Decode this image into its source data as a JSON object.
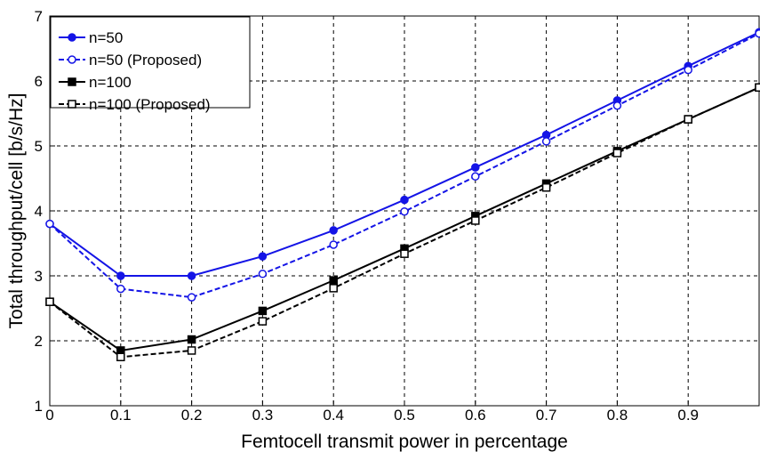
{
  "chart_data": {
    "type": "line",
    "title": "",
    "xlabel": "Femtocell transmit power in percentage",
    "ylabel": "Total throughput/cell [b/s/Hz]",
    "xlim": [
      0,
      1
    ],
    "ylim": [
      1,
      7
    ],
    "xticks": [
      "0",
      "0.1",
      "0.2",
      "0.3",
      "0.4",
      "0.5",
      "0.6",
      "0.7",
      "0.8",
      "0.9"
    ],
    "yticks": [
      "1",
      "2",
      "3",
      "4",
      "5",
      "6",
      "7"
    ],
    "grid": true,
    "legend_position": "top-left",
    "x": [
      0,
      0.1,
      0.2,
      0.3,
      0.4,
      0.5,
      0.6,
      0.7,
      0.8,
      0.9,
      1.0
    ],
    "series": [
      {
        "name": "n=50",
        "color": "#1414e6",
        "marker": "filled-circle",
        "dash": false,
        "values": [
          3.8,
          3.0,
          3.0,
          3.3,
          3.7,
          4.17,
          4.67,
          5.17,
          5.7,
          6.23,
          6.75
        ]
      },
      {
        "name": "n=50 (Proposed)",
        "color": "#1414e6",
        "marker": "open-circle",
        "dash": true,
        "values": [
          3.8,
          2.8,
          2.67,
          3.03,
          3.48,
          3.99,
          4.53,
          5.07,
          5.62,
          6.17,
          6.73
        ]
      },
      {
        "name": "n=100",
        "color": "#000000",
        "marker": "filled-square",
        "dash": false,
        "values": [
          2.6,
          1.85,
          2.02,
          2.46,
          2.93,
          3.42,
          3.92,
          4.42,
          4.92,
          5.41,
          5.9
        ]
      },
      {
        "name": "n=100 (Proposed)",
        "color": "#000000",
        "marker": "open-square",
        "dash": true,
        "values": [
          2.6,
          1.75,
          1.85,
          2.3,
          2.81,
          3.34,
          3.85,
          4.36,
          4.89,
          5.41,
          5.9
        ]
      }
    ]
  }
}
